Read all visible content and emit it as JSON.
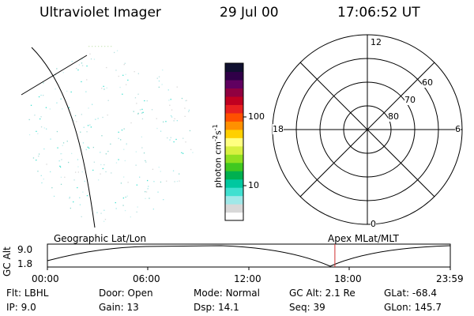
{
  "header": {
    "title": "Ultraviolet Imager",
    "date": "29 Jul 00",
    "time": "17:06:52 UT"
  },
  "colorbar": {
    "unit_label": "photon cm",
    "unit_exp1": "-2",
    "unit_mid": "s",
    "unit_exp2": "-1",
    "tick_100": "100",
    "tick_10": "10",
    "colors": [
      "#ffffff",
      "#d8d8d8",
      "#a0e8e8",
      "#40e0d0",
      "#00c8a0",
      "#00b050",
      "#40c820",
      "#90e020",
      "#d8f040",
      "#ffff80",
      "#ffd000",
      "#ff9000",
      "#ff5000",
      "#e82020",
      "#c00020",
      "#900040",
      "#600060",
      "#300048",
      "#101030"
    ]
  },
  "polar": {
    "mlt_12": "12",
    "mlt_18": "18",
    "mlt_6": "6",
    "mlt_0": "0",
    "lat_60": "60",
    "lat_70": "70",
    "lat_80": "80"
  },
  "altplot": {
    "ylabel": "GC Alt",
    "ymax": "9.0",
    "ymin": "1.8",
    "left_label": "Geographic Lat/Lon",
    "right_label": "Apex MLat/MLT",
    "time_ticks": [
      "00:00",
      "06:00",
      "12:00",
      "18:00",
      "23:59"
    ],
    "current_marker_time": "17:06:52",
    "marker_color": "#d03030"
  },
  "info": {
    "row1": [
      {
        "label": "Flt:",
        "value": "LBHL"
      },
      {
        "label": "Door:",
        "value": "Open"
      },
      {
        "label": "Mode:",
        "value": "Normal"
      },
      {
        "label": "GC Alt:",
        "value": "2.1 Re"
      },
      {
        "label": "GLat:",
        "value": "-68.4"
      }
    ],
    "row2": [
      {
        "label": "IP:",
        "value": "9.0"
      },
      {
        "label": "Gain:",
        "value": "13"
      },
      {
        "label": "Dsp:",
        "value": "14.1"
      },
      {
        "label": "Seq:",
        "value": "39"
      },
      {
        "label": "GLon:",
        "value": "145.7"
      }
    ]
  }
}
